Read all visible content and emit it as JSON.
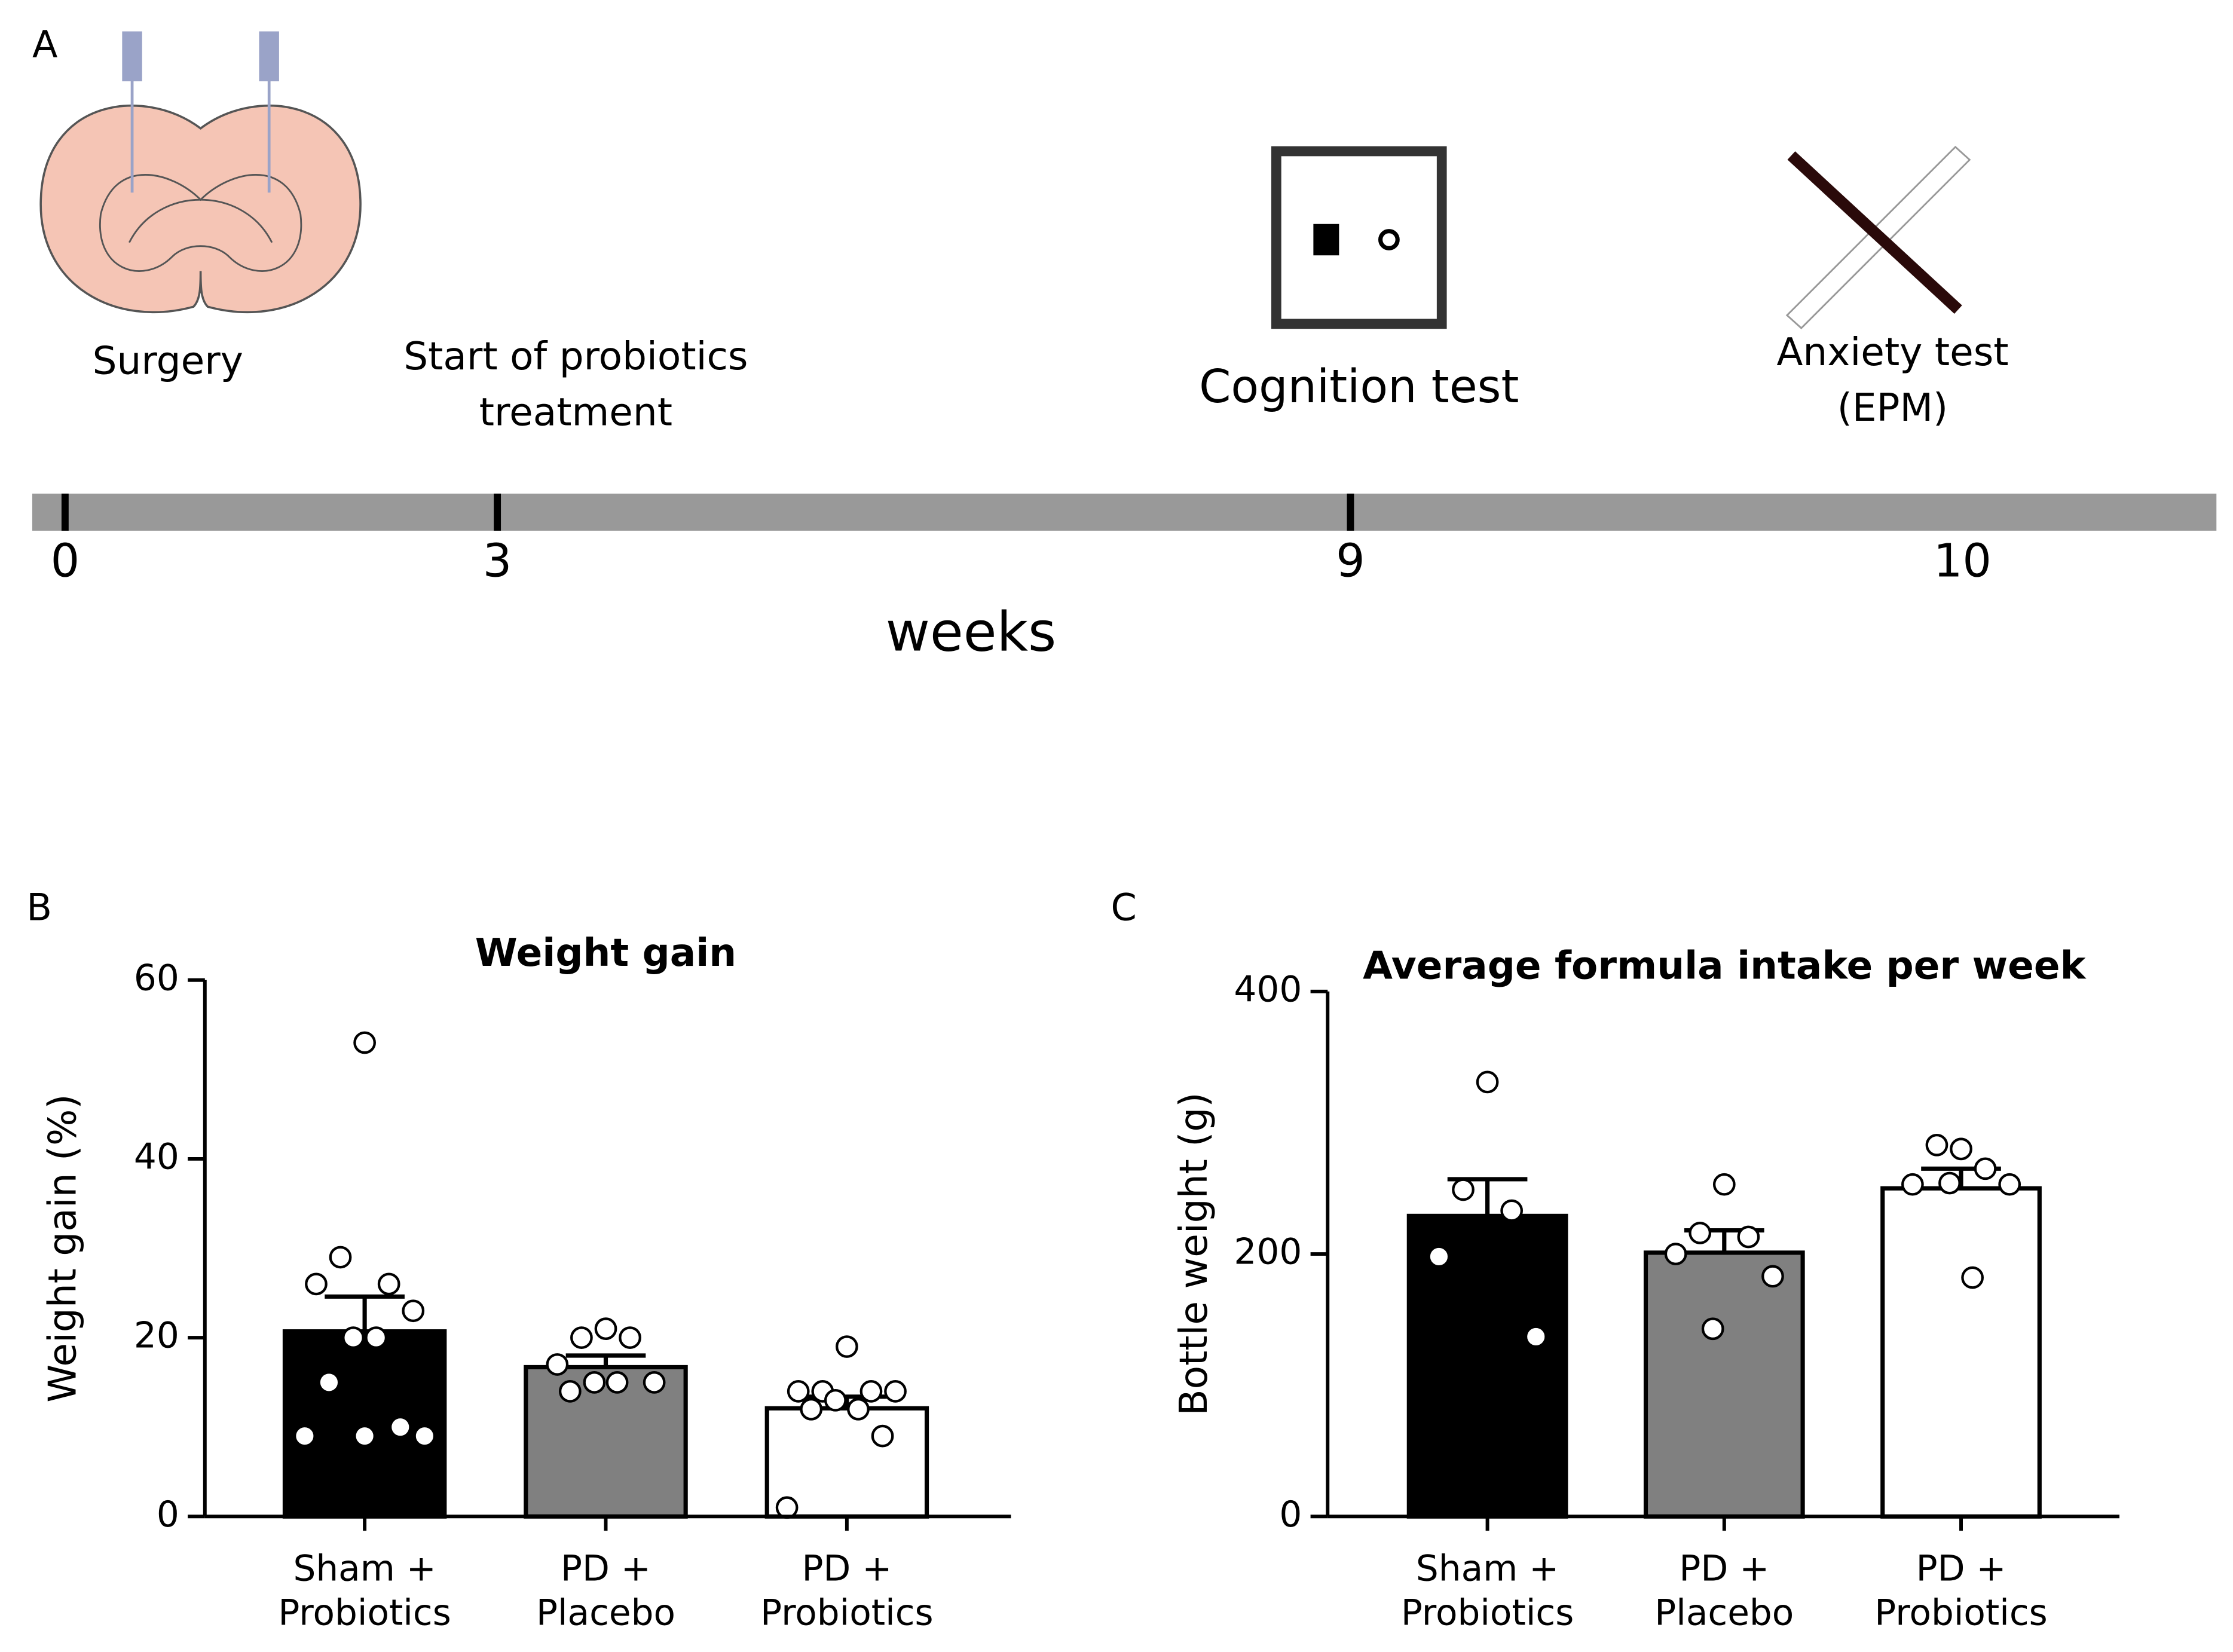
{
  "panels": [
    "A",
    "B",
    "C"
  ],
  "timeline": {
    "events": [
      [
        "Surgery"
      ],
      [
        "Start of probiotics",
        "treatment"
      ],
      [
        "Cognition test"
      ],
      [
        "Anxiety test",
        "(EPM)"
      ]
    ],
    "ticks": [
      0,
      3,
      9,
      10
    ],
    "axis_label": "weeks"
  },
  "chart_data": [
    {
      "type": "bar",
      "title": "Weight gain",
      "ylabel": "Weight gain (%)",
      "categories": [
        [
          "Sham +",
          "Probiotics"
        ],
        [
          "PD +",
          "Placebo"
        ],
        [
          "PD +",
          "Probiotics"
        ]
      ],
      "values": [
        20.7,
        16.7,
        12.1
      ],
      "errors": [
        3.9,
        1.3,
        1.3
      ],
      "colors": [
        "#000000",
        "#808080",
        "#ffffff"
      ],
      "points": [
        [
          53,
          29,
          26,
          26,
          23,
          20,
          20,
          15,
          10,
          9,
          9,
          9
        ],
        [
          21,
          20,
          20,
          17,
          15,
          15,
          15,
          14
        ],
        [
          19,
          14,
          14,
          14,
          14,
          13,
          12,
          12,
          9,
          1
        ]
      ],
      "ylim": [
        0,
        60
      ],
      "yticks": [
        0,
        20,
        40,
        60
      ]
    },
    {
      "type": "bar",
      "title": "Average formula intake per week",
      "ylabel": "Bottle weight (g)",
      "categories": [
        [
          "Sham +",
          "Probiotics"
        ],
        [
          "PD +",
          "Placebo"
        ],
        [
          "PD +",
          "Probiotics"
        ]
      ],
      "values": [
        229,
        201,
        250
      ],
      "errors": [
        28,
        17,
        15
      ],
      "colors": [
        "#000000",
        "#808080",
        "#ffffff"
      ],
      "points": [
        [
          331,
          249,
          233,
          198,
          137
        ],
        [
          253,
          216,
          213,
          200,
          183,
          143
        ],
        [
          280,
          283,
          265,
          253,
          253,
          254,
          182
        ]
      ],
      "ylim": [
        0,
        400
      ],
      "yticks": [
        0,
        200,
        400
      ]
    }
  ]
}
